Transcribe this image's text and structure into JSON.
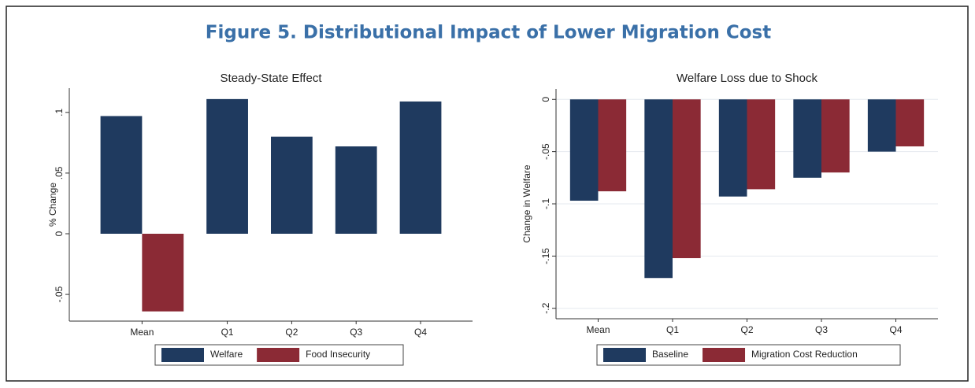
{
  "title": "Figure 5. Distributional Impact of Lower Migration Cost",
  "chart_data": [
    {
      "type": "bar",
      "title": "Steady-State Effect",
      "y_label": "% Change",
      "categories": [
        "Mean",
        "Q1",
        "Q2",
        "Q3",
        "Q4"
      ],
      "series": [
        {
          "name": "Welfare",
          "color": "#1f3a5f",
          "values": [
            0.097,
            0.111,
            0.08,
            0.072,
            0.109
          ]
        },
        {
          "name": "Food Insecurity",
          "color": "#8b2a35",
          "values": [
            -0.064,
            null,
            null,
            null,
            null
          ]
        }
      ],
      "ylim": [
        -0.072,
        0.12
      ],
      "yticks": [
        {
          "value": -0.05,
          "label": "-.05"
        },
        0,
        {
          "value": 0.05,
          "label": ".05"
        },
        {
          "value": 0.1,
          "label": ".1"
        }
      ],
      "grid": false,
      "legend": "bottom"
    },
    {
      "type": "bar",
      "title": "Welfare Loss due to Shock",
      "y_label": "Change in Welfare",
      "categories": [
        "Mean",
        "Q1",
        "Q2",
        "Q3",
        "Q4"
      ],
      "series": [
        {
          "name": "Baseline",
          "color": "#1f3a5f",
          "values": [
            -0.097,
            -0.171,
            -0.093,
            -0.075,
            -0.05
          ]
        },
        {
          "name": "Migration Cost Reduction",
          "color": "#8b2a35",
          "values": [
            -0.088,
            -0.152,
            -0.086,
            -0.07,
            -0.045
          ]
        }
      ],
      "ylim": [
        -0.21,
        0.01
      ],
      "yticks": [
        {
          "value": -0.2,
          "label": "-.2"
        },
        {
          "value": -0.15,
          "label": "-.15"
        },
        {
          "value": -0.1,
          "label": "-.1"
        },
        {
          "value": -0.05,
          "label": "-.05"
        },
        0
      ],
      "grid": true,
      "legend": "bottom"
    }
  ]
}
